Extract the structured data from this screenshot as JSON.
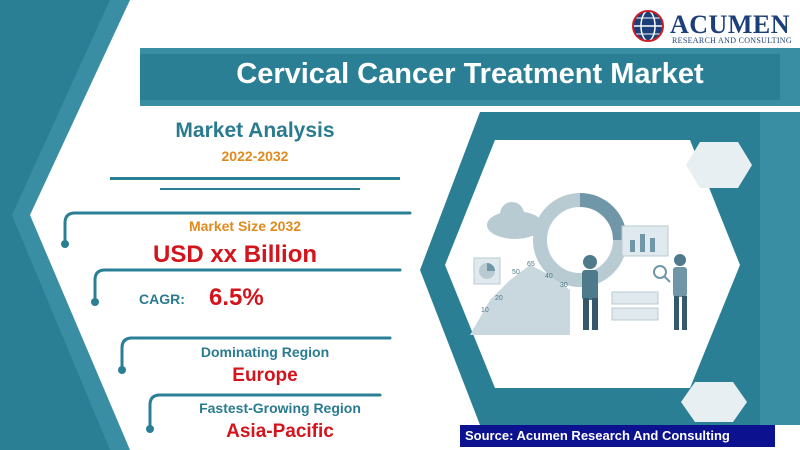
{
  "header": {
    "title": "Cervical Cancer Treatment Market",
    "logo_brand": "ACUMEN",
    "logo_tagline": "RESEARCH AND CONSULTING"
  },
  "analysis": {
    "heading": "Market Analysis",
    "period": "2022-2032"
  },
  "stats": {
    "market_size_label": "Market Size 2032",
    "market_size_value": "USD xx Billion",
    "cagr_label": "CAGR:",
    "cagr_value": "6.5%",
    "dominating_label": "Dominating Region",
    "dominating_value": "Europe",
    "fastest_label": "Fastest-Growing Region",
    "fastest_value": "Asia-Pacific"
  },
  "illustration": {
    "chart_labels": [
      "10",
      "20",
      "30",
      "40",
      "50",
      "65"
    ]
  },
  "footer": {
    "source": "Source: Acumen Research And Consulting"
  },
  "colors": {
    "teal": "#2b7f95",
    "teal_light": "#3a8ea3",
    "orange": "#e08a1e",
    "red": "#d4141c",
    "navy": "#0c1190"
  }
}
